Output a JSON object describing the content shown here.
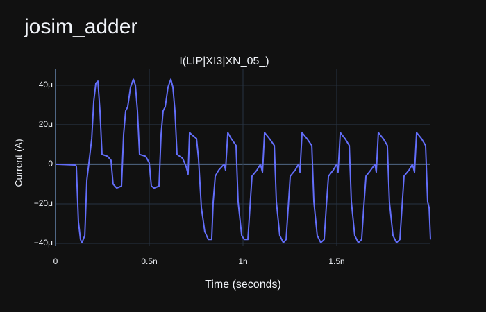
{
  "chart_data": {
    "type": "line",
    "title": "josim_adder",
    "subtitle": "I(LIP|XI3|XN_05_)",
    "xlabel": "Time (seconds)",
    "ylabel": "Current (A)",
    "color": "#636efa",
    "grid": true,
    "xlim": [
      0,
      2e-09
    ],
    "ylim": [
      -4.14e-05,
      4.8e-05
    ],
    "xticks": [
      0,
      {
        "value": 5e-10,
        "label": "0.5n"
      },
      {
        "value": 1e-09,
        "label": "1n"
      },
      {
        "value": 1.5e-09,
        "label": "1.5n"
      }
    ],
    "yticks": [
      {
        "value": -4e-05,
        "label": "−40μ"
      },
      {
        "value": -2e-05,
        "label": "−20μ"
      },
      0,
      {
        "value": 2e-05,
        "label": "20μ"
      },
      {
        "value": 4e-05,
        "label": "40μ"
      }
    ],
    "x": [
      0,
      1.04e-10,
      1.11e-10,
      1.22e-10,
      1.33e-10,
      1.41e-10,
      1.56e-10,
      1.67e-10,
      1.78e-10,
      1.93e-10,
      2.04e-10,
      2.15e-10,
      2.26e-10,
      2.37e-10,
      2.48e-10,
      2.78e-10,
      2.96e-10,
      3.07e-10,
      3.26e-10,
      3.52e-10,
      3.63e-10,
      3.74e-10,
      3.85e-10,
      4e-10,
      4.15e-10,
      4.26e-10,
      4.37e-10,
      4.48e-10,
      4.81e-10,
      5e-10,
      5.11e-10,
      5.26e-10,
      5.52e-10,
      5.63e-10,
      5.74e-10,
      5.85e-10,
      6e-10,
      6.15e-10,
      6.26e-10,
      6.37e-10,
      6.48e-10,
      6.78e-10,
      6.96e-10,
      7.07e-10,
      7.15e-10,
      7.26e-10,
      7.52e-10,
      7.63e-10,
      7.78e-10,
      7.96e-10,
      8.15e-10,
      8.33e-10,
      8.41e-10,
      8.52e-10,
      8.7e-10,
      8.89e-10,
      9e-10,
      9.07e-10,
      9.19e-10,
      9.37e-10,
      9.63e-10,
      9.74e-10,
      9.93e-10,
      1.007e-09,
      1.026e-09,
      1.037e-09,
      1.048e-09,
      1.074e-09,
      1.093e-09,
      1.104e-09,
      1.115e-09,
      1.141e-09,
      1.167e-09,
      1.178e-09,
      1.196e-09,
      1.215e-09,
      1.23e-09,
      1.241e-09,
      1.252e-09,
      1.278e-09,
      1.296e-09,
      1.304e-09,
      1.315e-09,
      1.341e-09,
      1.367e-09,
      1.378e-09,
      1.396e-09,
      1.415e-09,
      1.433e-09,
      1.444e-09,
      1.456e-09,
      1.481e-09,
      1.5e-09,
      1.507e-09,
      1.519e-09,
      1.544e-09,
      1.567e-09,
      1.578e-09,
      1.596e-09,
      1.615e-09,
      1.633e-09,
      1.644e-09,
      1.656e-09,
      1.681e-09,
      1.704e-09,
      1.711e-09,
      1.722e-09,
      1.748e-09,
      1.77e-09,
      1.781e-09,
      1.8e-09,
      1.819e-09,
      1.837e-09,
      1.848e-09,
      1.859e-09,
      1.885e-09,
      1.904e-09,
      1.915e-09,
      1.926e-09,
      1.952e-09,
      1.974e-09,
      1.985e-09,
      1.993e-09,
      2e-09
    ],
    "values": [
      0,
      -4e-07,
      -1e-06,
      -2.9e-05,
      -3.8e-05,
      -3.96e-05,
      -3.6e-05,
      -8e-06,
      7e-07,
      1.3e-05,
      3.2e-05,
      4.1e-05,
      4.2e-05,
      2.7e-05,
      5e-06,
      4e-06,
      2e-06,
      -1e-05,
      -1.2e-05,
      -1.1e-05,
      1.5e-05,
      2.7e-05,
      2.9e-05,
      3.9e-05,
      4.3e-05,
      4e-05,
      2.7e-05,
      5e-06,
      4e-06,
      7e-07,
      -1.1e-05,
      -1.2e-05,
      -1.1e-05,
      1.5e-05,
      2.7e-05,
      2.9e-05,
      3.9e-05,
      4.3e-05,
      3.9e-05,
      2.7e-05,
      5e-06,
      3e-06,
      -1e-06,
      -5e-06,
      1.6e-05,
      1.5e-05,
      1.3e-05,
      2.5e-06,
      -2.2e-05,
      -3.4e-05,
      -3.8e-05,
      -3.8e-05,
      -1.9e-05,
      -6e-06,
      -3e-06,
      -1e-06,
      0,
      -3e-06,
      1.6e-05,
      1.3e-05,
      9.5e-06,
      -1.9e-05,
      -3.6e-05,
      -3.8e-05,
      -3.8e-05,
      -2.2e-05,
      -6e-06,
      -3e-06,
      0,
      -4e-06,
      1.6e-05,
      1.3e-05,
      9.5e-06,
      -1.9e-05,
      -3.6e-05,
      -3.96e-05,
      -3.8e-05,
      -2.2e-05,
      -6e-06,
      -3e-06,
      0,
      -4e-06,
      1.6e-05,
      1.3e-05,
      9.5e-06,
      -1.9e-05,
      -3.6e-05,
      -3.96e-05,
      -3.8e-05,
      -2.2e-05,
      -6e-06,
      -3e-06,
      0,
      -4e-06,
      1.6e-05,
      1.3e-05,
      9.5e-06,
      -1.9e-05,
      -3.6e-05,
      -3.96e-05,
      -3.8e-05,
      -2.2e-05,
      -6e-06,
      -3e-06,
      0,
      -4e-06,
      1.6e-05,
      1.3e-05,
      9.5e-06,
      -1.9e-05,
      -3.6e-05,
      -3.96e-05,
      -3.8e-05,
      -2.2e-05,
      -6e-06,
      -3e-06,
      0,
      -4e-06,
      1.6e-05,
      1.3e-05,
      9.5e-06,
      -1.9e-05,
      -2.2e-05,
      -3.8e-05
    ]
  }
}
